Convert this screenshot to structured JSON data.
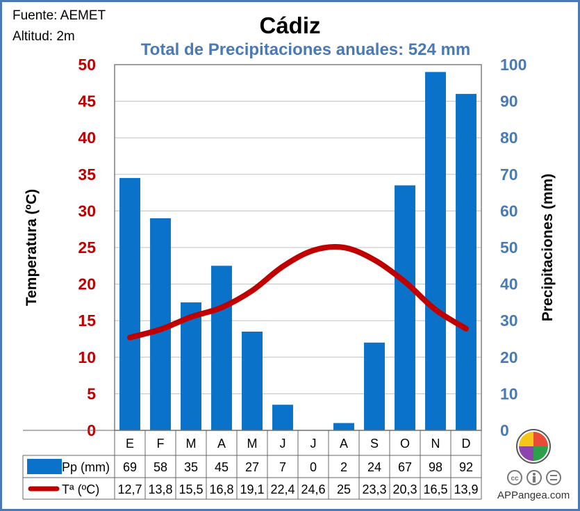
{
  "header": {
    "source": "Fuente: AEMET",
    "altitude": "Altitud: 2m",
    "title": "Cádiz",
    "subtitle": "Total de Precipitaciones anuales: 524 mm"
  },
  "footer": {
    "credit": "APPangea.com"
  },
  "colors": {
    "temperature": "#c00000",
    "precipitation": "#0b72c9",
    "axis_blue": "#4a7ab5"
  },
  "icons": [
    "puzzle-logo-icon",
    "cc-icon",
    "by-icon",
    "nd-icon"
  ],
  "chart_data": {
    "type": "bar",
    "categories": [
      "E",
      "F",
      "M",
      "A",
      "M",
      "J",
      "J",
      "A",
      "S",
      "O",
      "N",
      "D"
    ],
    "series": [
      {
        "name": "Pp (mm)",
        "type": "bar",
        "axis": "right",
        "values": [
          69,
          58,
          35,
          45,
          27,
          7,
          0,
          2,
          24,
          67,
          98,
          92
        ]
      },
      {
        "name": "Tª (ºC)",
        "type": "line",
        "axis": "left",
        "values": [
          12.7,
          13.8,
          15.5,
          16.8,
          19.1,
          22.4,
          24.6,
          25,
          23.3,
          20.3,
          16.5,
          13.9
        ]
      }
    ],
    "table": {
      "pp_labels": [
        "69",
        "58",
        "35",
        "45",
        "27",
        "7",
        "0",
        "2",
        "24",
        "67",
        "98",
        "92"
      ],
      "t_labels": [
        "12,7",
        "13,8",
        "15,5",
        "16,8",
        "19,1",
        "22,4",
        "24,6",
        "25",
        "23,3",
        "20,3",
        "16,5",
        "13,9"
      ]
    },
    "ylabel_left": "Temperatura (ºC)",
    "ylabel_right": "Precipitaciones (mm)",
    "ylim_left": [
      0,
      50
    ],
    "ylim_right": [
      0,
      100
    ],
    "yticks_left": [
      "0",
      "5",
      "10",
      "15",
      "20",
      "25",
      "30",
      "35",
      "40",
      "45",
      "50"
    ],
    "yticks_right": [
      "0",
      "10",
      "20",
      "30",
      "40",
      "50",
      "60",
      "70",
      "80",
      "90",
      "100"
    ],
    "grid": true
  }
}
